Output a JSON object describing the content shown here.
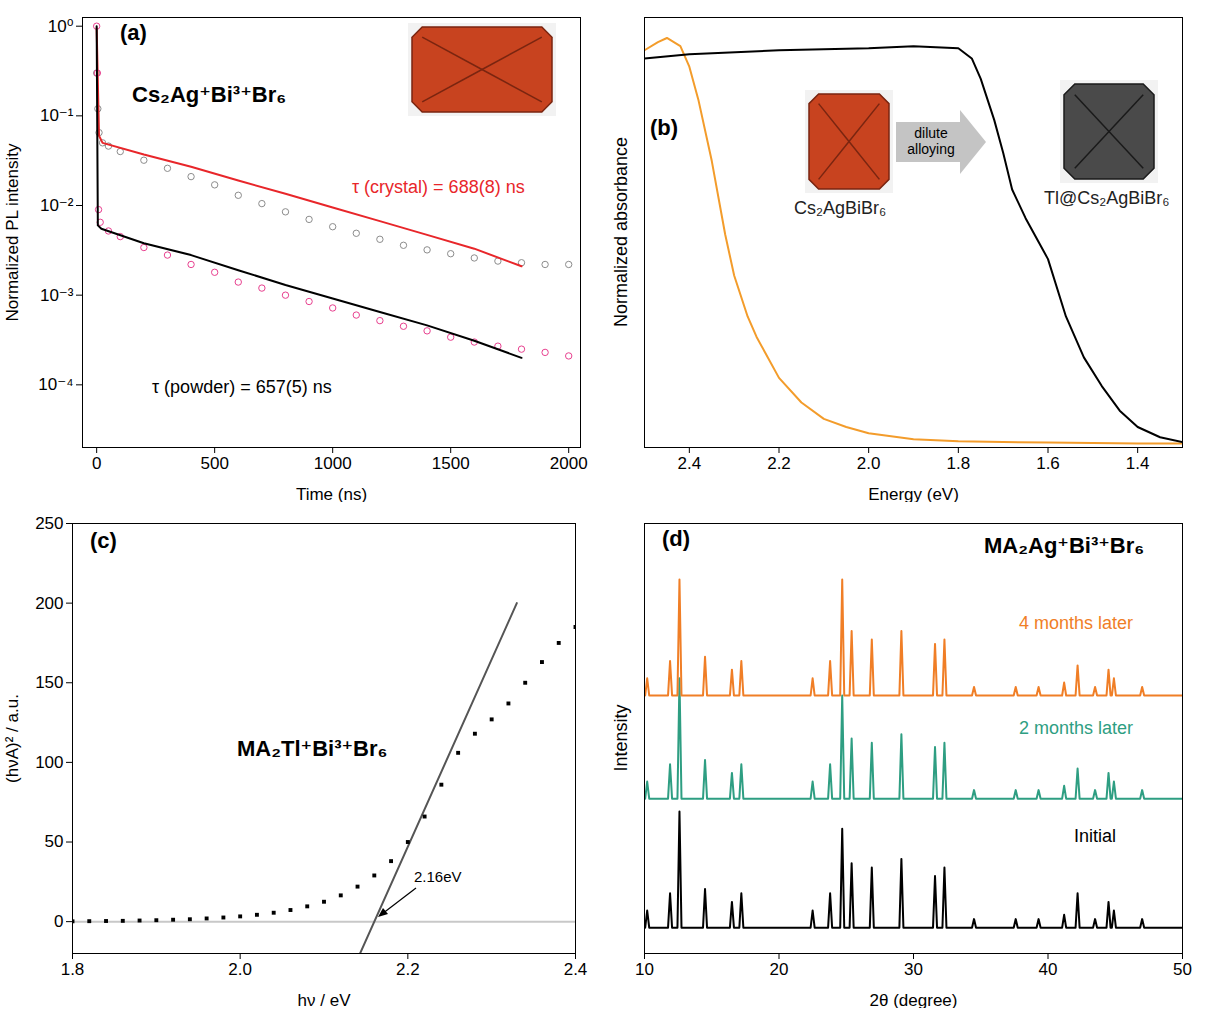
{
  "chart_data": [
    {
      "type": "scatter",
      "panel_label": "(a)",
      "title": "Cs₂Ag⁺Bi³⁺Br₆",
      "x_label": "Time (ns)",
      "y_label": "Normalized PL intensity",
      "log": "y",
      "xlim": [
        -60,
        2050
      ],
      "xticks": [
        0,
        500,
        1000,
        1500,
        2000
      ],
      "ylim": [
        2e-05,
        1.25
      ],
      "yticks": [
        {
          "value": 0.0001,
          "label": "10⁻⁴"
        },
        {
          "value": 0.001,
          "label": "10⁻³"
        },
        {
          "value": 0.01,
          "label": "10⁻²"
        },
        {
          "value": 0.1,
          "label": "10⁻¹"
        },
        {
          "value": 1,
          "label": "10⁰"
        }
      ],
      "series": [
        {
          "color": "#8c8c8c",
          "marker": "open_circle",
          "x": [
            0,
            5,
            10,
            25,
            50,
            100,
            200,
            300,
            400,
            500,
            600,
            700,
            800,
            900,
            1000,
            1100,
            1200,
            1300,
            1400,
            1500,
            1600,
            1700,
            1800,
            1900,
            2000
          ],
          "values": [
            0.3,
            0.12,
            0.065,
            0.05,
            0.046,
            0.04,
            0.032,
            0.026,
            0.021,
            0.017,
            0.013,
            0.0105,
            0.0085,
            0.007,
            0.0058,
            0.0049,
            0.0042,
            0.0036,
            0.0032,
            0.0029,
            0.0026,
            0.0024,
            0.0023,
            0.0022,
            0.0022
          ]
        },
        {
          "name": "τ (crystal) = 688(8) ns",
          "type": "line",
          "color": "#e8262a",
          "x": [
            0,
            10,
            25,
            200,
            400,
            600,
            800,
            1000,
            1200,
            1400,
            1600,
            1800
          ],
          "values": [
            0.95,
            0.06,
            0.05,
            0.037,
            0.027,
            0.019,
            0.0135,
            0.0095,
            0.0067,
            0.0047,
            0.0033,
            0.0021
          ]
        },
        {
          "color": "#e8408f",
          "marker": "open_circle",
          "x": [
            0,
            3,
            8,
            15,
            50,
            100,
            200,
            300,
            400,
            500,
            600,
            700,
            800,
            900,
            1000,
            1100,
            1200,
            1300,
            1400,
            1500,
            1600,
            1700,
            1800,
            1900,
            2000
          ],
          "values": [
            1,
            0.3,
            0.009,
            0.0065,
            0.0052,
            0.0045,
            0.0034,
            0.0028,
            0.0022,
            0.0018,
            0.0014,
            0.0012,
            0.001,
            0.00085,
            0.00072,
            0.0006,
            0.00052,
            0.00045,
            0.0004,
            0.00034,
            0.0003,
            0.00027,
            0.00025,
            0.00023,
            0.00021
          ]
        },
        {
          "name": "τ (powder) = 657(5) ns",
          "type": "line",
          "color": "#000000",
          "x": [
            0,
            5,
            20,
            200,
            400,
            600,
            800,
            1000,
            1200,
            1400,
            1600,
            1800
          ],
          "values": [
            1,
            0.006,
            0.0055,
            0.0038,
            0.0028,
            0.0019,
            0.0013,
            0.00092,
            0.00065,
            0.00046,
            0.00031,
            0.0002
          ]
        }
      ]
    },
    {
      "type": "line",
      "panel_label": "(b)",
      "x_label": "Energy (eV)",
      "y_label": "Normalized absorbance",
      "annotations": [
        "dilute alloying"
      ],
      "tick_labels": "x",
      "xlim": [
        2.5,
        1.3
      ],
      "xticks": [
        2.4,
        2.2,
        {
          "value": 2,
          "label": "2.0"
        },
        1.8,
        1.6,
        1.4
      ],
      "ylim": [
        0,
        1.05
      ],
      "series": [
        {
          "name": "Cs₂AgBiBr₆",
          "color": "#f39c2b",
          "x": [
            2.5,
            2.47,
            2.45,
            2.42,
            2.4,
            2.38,
            2.35,
            2.32,
            2.3,
            2.27,
            2.25,
            2.2,
            2.15,
            2.1,
            2.05,
            2.0,
            1.9,
            1.8,
            1.6,
            1.4,
            1.3
          ],
          "values": [
            0.97,
            0.99,
            1.0,
            0.98,
            0.93,
            0.85,
            0.7,
            0.52,
            0.42,
            0.32,
            0.27,
            0.17,
            0.11,
            0.07,
            0.05,
            0.035,
            0.02,
            0.015,
            0.012,
            0.01,
            0.01
          ]
        },
        {
          "name": "Tl@Cs₂AgBiBr₆",
          "color": "#000000",
          "x": [
            2.5,
            2.4,
            2.2,
            2.0,
            1.9,
            1.8,
            1.77,
            1.75,
            1.72,
            1.7,
            1.68,
            1.65,
            1.62,
            1.6,
            1.56,
            1.52,
            1.48,
            1.44,
            1.4,
            1.35,
            1.3
          ],
          "values": [
            0.95,
            0.96,
            0.97,
            0.975,
            0.98,
            0.975,
            0.95,
            0.9,
            0.8,
            0.72,
            0.63,
            0.56,
            0.5,
            0.46,
            0.32,
            0.22,
            0.15,
            0.09,
            0.05,
            0.025,
            0.013
          ]
        }
      ]
    },
    {
      "type": "scatter",
      "panel_label": "(c)",
      "title": "MA₂Tl⁺Bi³⁺Br₆",
      "x_label": "hν / eV",
      "y_label": "(hνA)² / a.u.",
      "annotations": [
        "2.16eV"
      ],
      "xlim": [
        1.8,
        2.4
      ],
      "xticks": [
        1.8,
        {
          "value": 2,
          "label": "2.0"
        },
        2.2,
        2.4
      ],
      "ylim": [
        -20,
        250
      ],
      "yticks": [
        0,
        50,
        100,
        150,
        200,
        250
      ],
      "series": [
        {
          "type": "line",
          "color": "#c8c8c8",
          "x": [
            1.8,
            2.4
          ],
          "values": [
            0,
            0
          ]
        },
        {
          "type": "line",
          "color": "#555555",
          "x": [
            2.143,
            2.33
          ],
          "values": [
            -20,
            200
          ]
        },
        {
          "color": "#000000",
          "marker": "square",
          "x": [
            1.8,
            1.82,
            1.84,
            1.86,
            1.88,
            1.9,
            1.92,
            1.94,
            1.96,
            1.98,
            2.0,
            2.02,
            2.04,
            2.06,
            2.08,
            2.1,
            2.12,
            2.14,
            2.16,
            2.18,
            2.2,
            2.22,
            2.24,
            2.26,
            2.28,
            2.3,
            2.32,
            2.34,
            2.36,
            2.38,
            2.4
          ],
          "values": [
            0.2,
            0.3,
            0.4,
            0.5,
            0.7,
            0.9,
            1.2,
            1.5,
            2,
            2.6,
            3.3,
            4.3,
            5.6,
            7.3,
            9.6,
            12.5,
            16.5,
            22,
            29,
            38,
            50,
            66,
            86,
            106,
            118,
            127,
            137,
            150,
            163,
            175,
            185
          ]
        }
      ]
    },
    {
      "type": "line",
      "panel_label": "(d)",
      "title": "MA₂Ag⁺Bi³⁺Br₆",
      "x_label": "2θ (degree)",
      "y_label": "Intensity",
      "tick_labels": "x",
      "xlim": [
        10,
        50
      ],
      "xticks": [
        10,
        20,
        30,
        40,
        50
      ],
      "ylim": [
        0,
        100
      ],
      "x": [
        10,
        10.05,
        10.2,
        10.35,
        11.75,
        11.9,
        12.05,
        12.45,
        12.6,
        12.75,
        14.35,
        14.5,
        14.65,
        16.35,
        16.5,
        16.65,
        17.05,
        17.2,
        17.35,
        22.35,
        22.5,
        22.65,
        23.65,
        23.8,
        23.95,
        24.55,
        24.7,
        24.85,
        25.25,
        25.4,
        25.55,
        26.75,
        26.9,
        27.05,
        28.95,
        29.1,
        29.25,
        31.45,
        31.6,
        31.75,
        32.15,
        32.3,
        32.45,
        34.35,
        34.5,
        34.65,
        37.45,
        37.6,
        37.75,
        39.15,
        39.3,
        39.45,
        41.05,
        41.2,
        41.35,
        42.05,
        42.2,
        42.35,
        43.35,
        43.5,
        43.65,
        44.35,
        44.5,
        44.65,
        44.75,
        44.9,
        45.05,
        46.85,
        47.0,
        47.15,
        50
      ],
      "series": [
        {
          "name": "Initial",
          "color": "#000000",
          "values": [
            6,
            6,
            10,
            6,
            6,
            14,
            6,
            6,
            33,
            6,
            6,
            15,
            6,
            6,
            12,
            6,
            6,
            14,
            6,
            6,
            10,
            6,
            6,
            14,
            6,
            6,
            29,
            6,
            6,
            21,
            6,
            6,
            20,
            6,
            6,
            22,
            6,
            6,
            18,
            6,
            6,
            20,
            6,
            6,
            8,
            6,
            6,
            8,
            6,
            6,
            8,
            6,
            6,
            9,
            6,
            6,
            14,
            6,
            6,
            8,
            6,
            6,
            12,
            6,
            6,
            10,
            6,
            6,
            8,
            6,
            6
          ]
        },
        {
          "name": "2 months later",
          "color": "#2e9e82",
          "values": [
            36,
            36,
            40,
            36,
            36,
            44,
            36,
            36,
            64,
            36,
            36,
            45,
            36,
            36,
            42,
            36,
            36,
            44,
            36,
            36,
            40,
            36,
            36,
            44,
            36,
            36,
            60,
            36,
            36,
            50,
            36,
            36,
            49,
            36,
            36,
            51,
            36,
            36,
            48,
            36,
            36,
            49,
            36,
            36,
            38,
            36,
            36,
            38,
            36,
            36,
            38,
            36,
            36,
            39,
            36,
            36,
            43,
            36,
            36,
            38,
            36,
            36,
            42,
            36,
            36,
            40,
            36,
            36,
            38,
            36,
            36
          ]
        },
        {
          "name": "4 months later",
          "color": "#f07e26",
          "values": [
            60,
            60,
            64,
            60,
            60,
            68,
            60,
            60,
            87,
            60,
            60,
            69,
            60,
            60,
            66,
            60,
            60,
            68,
            60,
            60,
            64,
            60,
            60,
            68,
            60,
            60,
            87,
            60,
            60,
            75,
            60,
            60,
            73,
            60,
            60,
            75,
            60,
            60,
            72,
            60,
            60,
            73,
            60,
            60,
            62,
            60,
            60,
            62,
            60,
            60,
            62,
            60,
            60,
            63,
            60,
            60,
            67,
            60,
            60,
            62,
            60,
            60,
            66,
            60,
            60,
            64,
            60,
            60,
            62,
            60,
            60
          ]
        }
      ]
    }
  ]
}
